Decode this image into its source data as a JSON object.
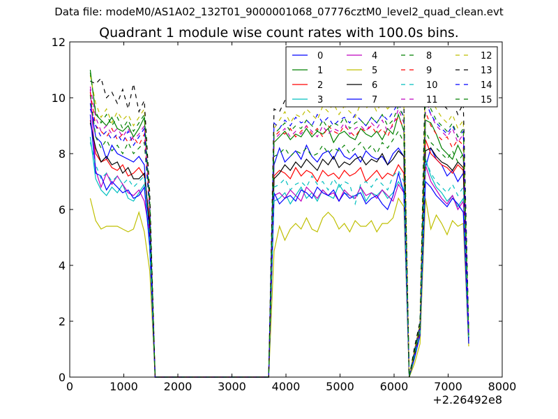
{
  "suptitle": "Data file: modeM0/AS1A02_132T01_9000001068_07776cztM0_level2_quad_clean.evt",
  "chart_data": {
    "type": "line",
    "title": "Quadrant 1 module wise count rates with 100.0s bins.",
    "xlabel": "",
    "ylabel": "",
    "x_offset_label": "+2.26492e8",
    "xlim": [
      0,
      8000
    ],
    "ylim": [
      0,
      12
    ],
    "xticks": [
      0,
      1000,
      2000,
      3000,
      4000,
      5000,
      6000,
      7000,
      8000
    ],
    "yticks": [
      0,
      2,
      4,
      6,
      8,
      10,
      12
    ],
    "grid": false,
    "legend_position": "top-right",
    "legend_columns": 4,
    "x": [
      380,
      480,
      580,
      680,
      780,
      880,
      980,
      1080,
      1180,
      1280,
      1380,
      1480,
      1580,
      1680,
      1780,
      1880,
      1980,
      2080,
      2180,
      2280,
      2380,
      2480,
      2580,
      2680,
      2780,
      2880,
      2980,
      3080,
      3180,
      3280,
      3380,
      3480,
      3580,
      3680,
      3780,
      3880,
      3980,
      4080,
      4180,
      4280,
      4380,
      4480,
      4580,
      4680,
      4780,
      4880,
      4980,
      5080,
      5180,
      5280,
      5380,
      5480,
      5580,
      5680,
      5780,
      5880,
      5980,
      6080,
      6180,
      6280,
      6380,
      6480,
      6580,
      6680,
      6780,
      6880,
      6980,
      7080,
      7180,
      7280,
      7380
    ],
    "series": [
      {
        "name": "0",
        "color": "#0000ff",
        "dash": "solid",
        "values": [
          9.8,
          8.6,
          8.4,
          7.8,
          8.3,
          8.0,
          7.9,
          7.8,
          7.7,
          7.9,
          7.6,
          5.0,
          0,
          0,
          0,
          0,
          0,
          0,
          0,
          0,
          0,
          0,
          0,
          0,
          0,
          0,
          0,
          0,
          0,
          0,
          0,
          0,
          0,
          0,
          7.6,
          8.2,
          7.7,
          7.9,
          8.1,
          7.8,
          8.3,
          7.9,
          7.7,
          8.0,
          8.1,
          7.8,
          8.2,
          7.9,
          7.8,
          8.0,
          7.7,
          8.1,
          7.9,
          7.8,
          7.9,
          7.6,
          8.0,
          8.2,
          7.9,
          0,
          1.0,
          1.9,
          7.5,
          8.2,
          7.8,
          7.6,
          7.2,
          7.4,
          7.0,
          7.3,
          1.5
        ]
      },
      {
        "name": "1",
        "color": "#008000",
        "dash": "solid",
        "values": [
          11.0,
          9.4,
          9.2,
          9.0,
          9.3,
          8.9,
          8.8,
          9.0,
          8.6,
          8.9,
          9.3,
          6.0,
          0,
          0,
          0,
          0,
          0,
          0,
          0,
          0,
          0,
          0,
          0,
          0,
          0,
          0,
          0,
          0,
          0,
          0,
          0,
          0,
          0,
          0,
          8.4,
          8.6,
          8.8,
          8.5,
          8.7,
          8.6,
          8.9,
          8.6,
          8.8,
          8.7,
          8.9,
          8.4,
          8.7,
          8.8,
          8.6,
          8.5,
          8.9,
          8.7,
          8.6,
          8.8,
          8.5,
          8.9,
          8.7,
          9.4,
          8.8,
          0,
          0.8,
          1.8,
          9.2,
          9.1,
          8.7,
          8.2,
          8.0,
          7.8,
          8.3,
          7.9,
          1.4
        ]
      },
      {
        "name": "2",
        "color": "#ff0000",
        "dash": "solid",
        "values": [
          9.2,
          8.0,
          7.7,
          7.8,
          7.5,
          7.4,
          7.6,
          7.2,
          7.3,
          7.5,
          7.2,
          5.6,
          0,
          0,
          0,
          0,
          0,
          0,
          0,
          0,
          0,
          0,
          0,
          0,
          0,
          0,
          0,
          0,
          0,
          0,
          0,
          0,
          0,
          0,
          7.2,
          7.4,
          7.3,
          7.1,
          7.5,
          7.2,
          7.4,
          7.3,
          7.0,
          7.4,
          7.2,
          7.3,
          7.1,
          7.4,
          7.2,
          7.3,
          7.5,
          7.0,
          7.2,
          7.4,
          7.1,
          7.3,
          7.2,
          7.6,
          7.3,
          0,
          0.8,
          1.6,
          8.5,
          8.0,
          7.8,
          7.6,
          7.5,
          7.3,
          7.6,
          7.4,
          1.3
        ]
      },
      {
        "name": "3",
        "color": "#00bfbf",
        "dash": "solid",
        "values": [
          8.6,
          7.1,
          6.7,
          6.5,
          6.8,
          6.6,
          6.9,
          6.4,
          6.3,
          6.6,
          6.9,
          4.6,
          0,
          0,
          0,
          0,
          0,
          0,
          0,
          0,
          0,
          0,
          0,
          0,
          0,
          0,
          0,
          0,
          0,
          0,
          0,
          0,
          0,
          0,
          6.3,
          6.4,
          6.6,
          6.2,
          6.5,
          6.8,
          6.4,
          6.6,
          6.3,
          6.7,
          6.5,
          6.4,
          6.9,
          6.6,
          6.5,
          6.4,
          6.8,
          6.3,
          6.6,
          6.5,
          6.7,
          6.4,
          6.6,
          7.0,
          6.7,
          0,
          0.7,
          1.5,
          7.8,
          7.2,
          6.8,
          6.6,
          6.3,
          6.5,
          6.1,
          6.4,
          1.2
        ]
      },
      {
        "name": "4",
        "color": "#bf00bf",
        "dash": "solid",
        "values": [
          10.3,
          7.4,
          6.8,
          7.3,
          6.9,
          7.2,
          6.9,
          6.6,
          6.5,
          6.7,
          6.3,
          5.2,
          0,
          0,
          0,
          0,
          0,
          0,
          0,
          0,
          0,
          0,
          0,
          0,
          0,
          0,
          0,
          0,
          0,
          0,
          0,
          0,
          0,
          0,
          6.5,
          6.6,
          6.4,
          6.7,
          6.5,
          6.3,
          6.8,
          6.6,
          6.4,
          6.7,
          6.5,
          6.6,
          6.3,
          6.7,
          6.5,
          6.4,
          6.8,
          6.5,
          6.6,
          6.4,
          6.7,
          6.5,
          6.3,
          6.9,
          6.6,
          0,
          0.8,
          1.7,
          7.6,
          7.0,
          6.7,
          6.4,
          6.2,
          6.5,
          6.0,
          6.3,
          1.3
        ]
      },
      {
        "name": "5",
        "color": "#bfbf00",
        "dash": "solid",
        "values": [
          6.4,
          5.6,
          5.3,
          5.4,
          5.4,
          5.4,
          5.3,
          5.2,
          5.3,
          5.9,
          5.2,
          3.8,
          0,
          0,
          0,
          0,
          0,
          0,
          0,
          0,
          0,
          0,
          0,
          0,
          0,
          0,
          0,
          0,
          0,
          0,
          0,
          0,
          0,
          0,
          4.5,
          5.4,
          4.9,
          5.3,
          5.5,
          5.3,
          5.7,
          5.3,
          5.2,
          5.7,
          5.9,
          5.7,
          5.3,
          5.5,
          5.2,
          5.6,
          5.4,
          5.4,
          5.6,
          5.2,
          5.5,
          5.5,
          5.7,
          6.4,
          6.1,
          0,
          0.5,
          1.2,
          6.4,
          5.3,
          5.8,
          5.5,
          5.1,
          5.6,
          5.4,
          5.5,
          1.1
        ]
      },
      {
        "name": "6",
        "color": "#000000",
        "dash": "solid",
        "values": [
          9.1,
          8.2,
          7.7,
          7.9,
          7.6,
          7.7,
          7.3,
          7.5,
          7.1,
          7.1,
          7.3,
          5.4,
          0,
          0,
          0,
          0,
          0,
          0,
          0,
          0,
          0,
          0,
          0,
          0,
          0,
          0,
          0,
          0,
          0,
          0,
          0,
          0,
          0,
          0,
          7.1,
          7.3,
          7.6,
          7.4,
          7.7,
          7.5,
          7.8,
          7.6,
          7.4,
          7.8,
          7.6,
          7.9,
          7.5,
          7.7,
          7.6,
          7.8,
          7.9,
          7.6,
          7.8,
          7.7,
          8.0,
          7.6,
          7.8,
          8.1,
          7.9,
          0,
          0.9,
          1.8,
          8.1,
          8.2,
          7.9,
          7.7,
          7.6,
          7.4,
          7.7,
          7.5,
          1.4
        ]
      },
      {
        "name": "7",
        "color": "#0000ff",
        "dash": "solid",
        "values": [
          9.4,
          7.3,
          7.2,
          6.7,
          7.0,
          6.8,
          6.6,
          6.7,
          6.4,
          6.5,
          6.8,
          4.7,
          0,
          0,
          0,
          0,
          0,
          0,
          0,
          0,
          0,
          0,
          0,
          0,
          0,
          0,
          0,
          0,
          0,
          0,
          0,
          0,
          0,
          0,
          6.6,
          6.2,
          6.4,
          6.5,
          6.3,
          6.7,
          6.6,
          6.4,
          6.8,
          6.6,
          6.5,
          6.7,
          6.3,
          6.6,
          6.4,
          6.5,
          6.6,
          6.2,
          6.4,
          6.5,
          6.2,
          6.0,
          6.5,
          7.3,
          6.6,
          0,
          0.7,
          1.5,
          7.0,
          6.8,
          6.5,
          6.3,
          6.1,
          6.4,
          6.2,
          5.9,
          1.2
        ]
      },
      {
        "name": "8",
        "color": "#008000",
        "dash": "dashed",
        "values": [
          10.1,
          8.6,
          8.2,
          8.5,
          8.1,
          8.3,
          8.0,
          8.4,
          8.0,
          8.2,
          8.4,
          5.9,
          0,
          0,
          0,
          0,
          0,
          0,
          0,
          0,
          0,
          0,
          0,
          0,
          0,
          0,
          0,
          0,
          0,
          0,
          0,
          0,
          0,
          0,
          7.9,
          8.0,
          8.2,
          7.9,
          8.1,
          8.0,
          8.2,
          7.9,
          8.0,
          8.3,
          8.0,
          8.2,
          8.1,
          8.3,
          8.0,
          8.2,
          8.4,
          8.1,
          8.3,
          8.0,
          8.4,
          8.2,
          8.5,
          8.8,
          8.4,
          0,
          0.8,
          1.7,
          8.8,
          8.4,
          8.2,
          8.0,
          7.8,
          8.1,
          7.7,
          8.0,
          1.4
        ]
      },
      {
        "name": "9",
        "color": "#ff0000",
        "dash": "dashed",
        "values": [
          10.2,
          9.0,
          8.8,
          8.6,
          8.9,
          8.5,
          8.7,
          8.4,
          8.6,
          8.3,
          8.7,
          6.0,
          0,
          0,
          0,
          0,
          0,
          0,
          0,
          0,
          0,
          0,
          0,
          0,
          0,
          0,
          0,
          0,
          0,
          0,
          0,
          0,
          0,
          0,
          8.6,
          8.8,
          8.7,
          8.9,
          8.6,
          8.8,
          9.0,
          8.7,
          8.9,
          8.6,
          9.0,
          8.8,
          8.7,
          9.0,
          8.8,
          8.6,
          8.9,
          8.8,
          9.0,
          8.7,
          8.9,
          8.6,
          9.1,
          9.3,
          8.9,
          0,
          0.9,
          1.8,
          9.5,
          9.0,
          8.7,
          8.5,
          8.6,
          8.2,
          8.5,
          8.3,
          1.4
        ]
      },
      {
        "name": "10",
        "color": "#00bfbf",
        "dash": "dashed",
        "values": [
          8.4,
          7.6,
          7.1,
          7.3,
          7.0,
          7.2,
          6.9,
          7.1,
          6.8,
          7.0,
          7.2,
          5.0,
          0,
          0,
          0,
          0,
          0,
          0,
          0,
          0,
          0,
          0,
          0,
          0,
          0,
          0,
          0,
          0,
          0,
          0,
          0,
          0,
          0,
          0,
          6.8,
          6.9,
          7.1,
          6.7,
          6.9,
          7.0,
          6.8,
          7.2,
          6.9,
          7.0,
          6.7,
          7.1,
          6.8,
          7.0,
          6.9,
          6.2,
          6.9,
          7.0,
          6.8,
          7.1,
          6.9,
          6.7,
          7.2,
          7.4,
          7.0,
          0,
          0.8,
          1.6,
          7.8,
          7.3,
          7.0,
          6.8,
          6.6,
          6.9,
          6.5,
          6.8,
          1.3
        ]
      },
      {
        "name": "11",
        "color": "#bf00bf",
        "dash": "dashed",
        "values": [
          10.4,
          9.3,
          8.8,
          9.0,
          8.7,
          8.9,
          8.6,
          8.9,
          8.5,
          8.7,
          9.0,
          6.2,
          0,
          0,
          0,
          0,
          0,
          0,
          0,
          0,
          0,
          0,
          0,
          0,
          0,
          0,
          0,
          0,
          0,
          0,
          0,
          0,
          0,
          0,
          8.5,
          8.7,
          8.9,
          8.6,
          8.8,
          8.7,
          9.0,
          8.8,
          8.6,
          9.0,
          8.7,
          8.9,
          8.8,
          9.1,
          8.7,
          8.9,
          9.0,
          8.8,
          9.1,
          8.9,
          9.2,
          8.8,
          9.0,
          9.6,
          9.1,
          0,
          0.9,
          1.8,
          10.0,
          9.4,
          9.0,
          8.8,
          8.6,
          8.9,
          8.4,
          8.7,
          1.5
        ]
      },
      {
        "name": "12",
        "color": "#bfbf00",
        "dash": "dashed",
        "values": [
          10.8,
          9.8,
          9.3,
          9.6,
          9.1,
          9.5,
          9.2,
          9.4,
          9.0,
          9.3,
          9.6,
          6.4,
          0,
          0,
          0,
          0,
          0,
          0,
          0,
          0,
          0,
          0,
          0,
          0,
          0,
          0,
          0,
          0,
          0,
          0,
          0,
          0,
          0,
          0,
          8.9,
          9.2,
          9.5,
          9.1,
          9.4,
          9.3,
          9.6,
          9.4,
          9.2,
          9.7,
          9.5,
          9.8,
          9.4,
          9.7,
          9.5,
          9.3,
          9.8,
          9.6,
          9.9,
          9.5,
          9.9,
          9.6,
          9.8,
          10.3,
          9.7,
          0,
          1.0,
          1.9,
          10.6,
          10.0,
          9.6,
          9.3,
          9.1,
          9.4,
          8.9,
          9.2,
          1.6
        ]
      },
      {
        "name": "13",
        "color": "#000000",
        "dash": "dashed",
        "values": [
          10.6,
          10.5,
          10.7,
          10.0,
          10.2,
          9.8,
          10.3,
          9.6,
          10.5,
          9.5,
          9.9,
          6.6,
          0,
          0,
          0,
          0,
          0,
          0,
          0,
          0,
          0,
          0,
          0,
          0,
          0,
          0,
          0,
          0,
          0,
          0,
          0,
          0,
          0,
          0,
          9.6,
          9.5,
          9.9,
          9.7,
          10.1,
          9.8,
          10.0,
          9.7,
          10.2,
          9.9,
          10.1,
          9.8,
          10.3,
          10.0,
          9.9,
          10.2,
          10.1,
          9.8,
          10.3,
          10.0,
          10.4,
          10.1,
          9.9,
          10.2,
          9.8,
          0,
          1.1,
          2.0,
          11.2,
          10.6,
          10.1,
          9.8,
          9.6,
          9.9,
          9.4,
          9.8,
          1.7
        ]
      },
      {
        "name": "14",
        "color": "#0000ff",
        "dash": "dashed",
        "values": [
          9.6,
          9.0,
          8.6,
          8.8,
          8.5,
          8.7,
          8.4,
          8.8,
          8.3,
          8.6,
          8.9,
          6.0,
          0,
          0,
          0,
          0,
          0,
          0,
          0,
          0,
          0,
          0,
          0,
          0,
          0,
          0,
          0,
          0,
          0,
          0,
          0,
          0,
          0,
          0,
          9.1,
          8.9,
          9.2,
          9.0,
          9.3,
          9.1,
          9.2,
          9.0,
          9.4,
          9.1,
          9.3,
          9.0,
          9.2,
          9.3,
          9.1,
          9.4,
          9.2,
          9.0,
          9.3,
          9.1,
          9.4,
          9.2,
          9.5,
          9.8,
          9.3,
          0,
          0.9,
          1.9,
          9.9,
          9.4,
          9.1,
          8.9,
          8.7,
          9.0,
          8.6,
          8.8,
          1.5
        ]
      },
      {
        "name": "15",
        "color": "#008000",
        "dash": "dashed",
        "values": [
          10.9,
          9.5,
          9.1,
          9.4,
          9.0,
          9.3,
          8.9,
          9.2,
          8.8,
          9.1,
          9.4,
          6.3,
          0,
          0,
          0,
          0,
          0,
          0,
          0,
          0,
          0,
          0,
          0,
          0,
          0,
          0,
          0,
          0,
          0,
          0,
          0,
          0,
          0,
          0,
          8.7,
          8.9,
          9.1,
          8.8,
          9.0,
          8.9,
          9.2,
          9.0,
          8.8,
          9.2,
          8.9,
          9.1,
          9.0,
          9.3,
          8.9,
          9.1,
          9.2,
          9.0,
          9.3,
          9.1,
          9.4,
          9.0,
          9.2,
          9.7,
          9.3,
          0,
          0.9,
          1.9,
          10.2,
          9.6,
          9.2,
          9.0,
          8.8,
          9.1,
          8.6,
          8.9,
          1.5
        ]
      }
    ]
  }
}
